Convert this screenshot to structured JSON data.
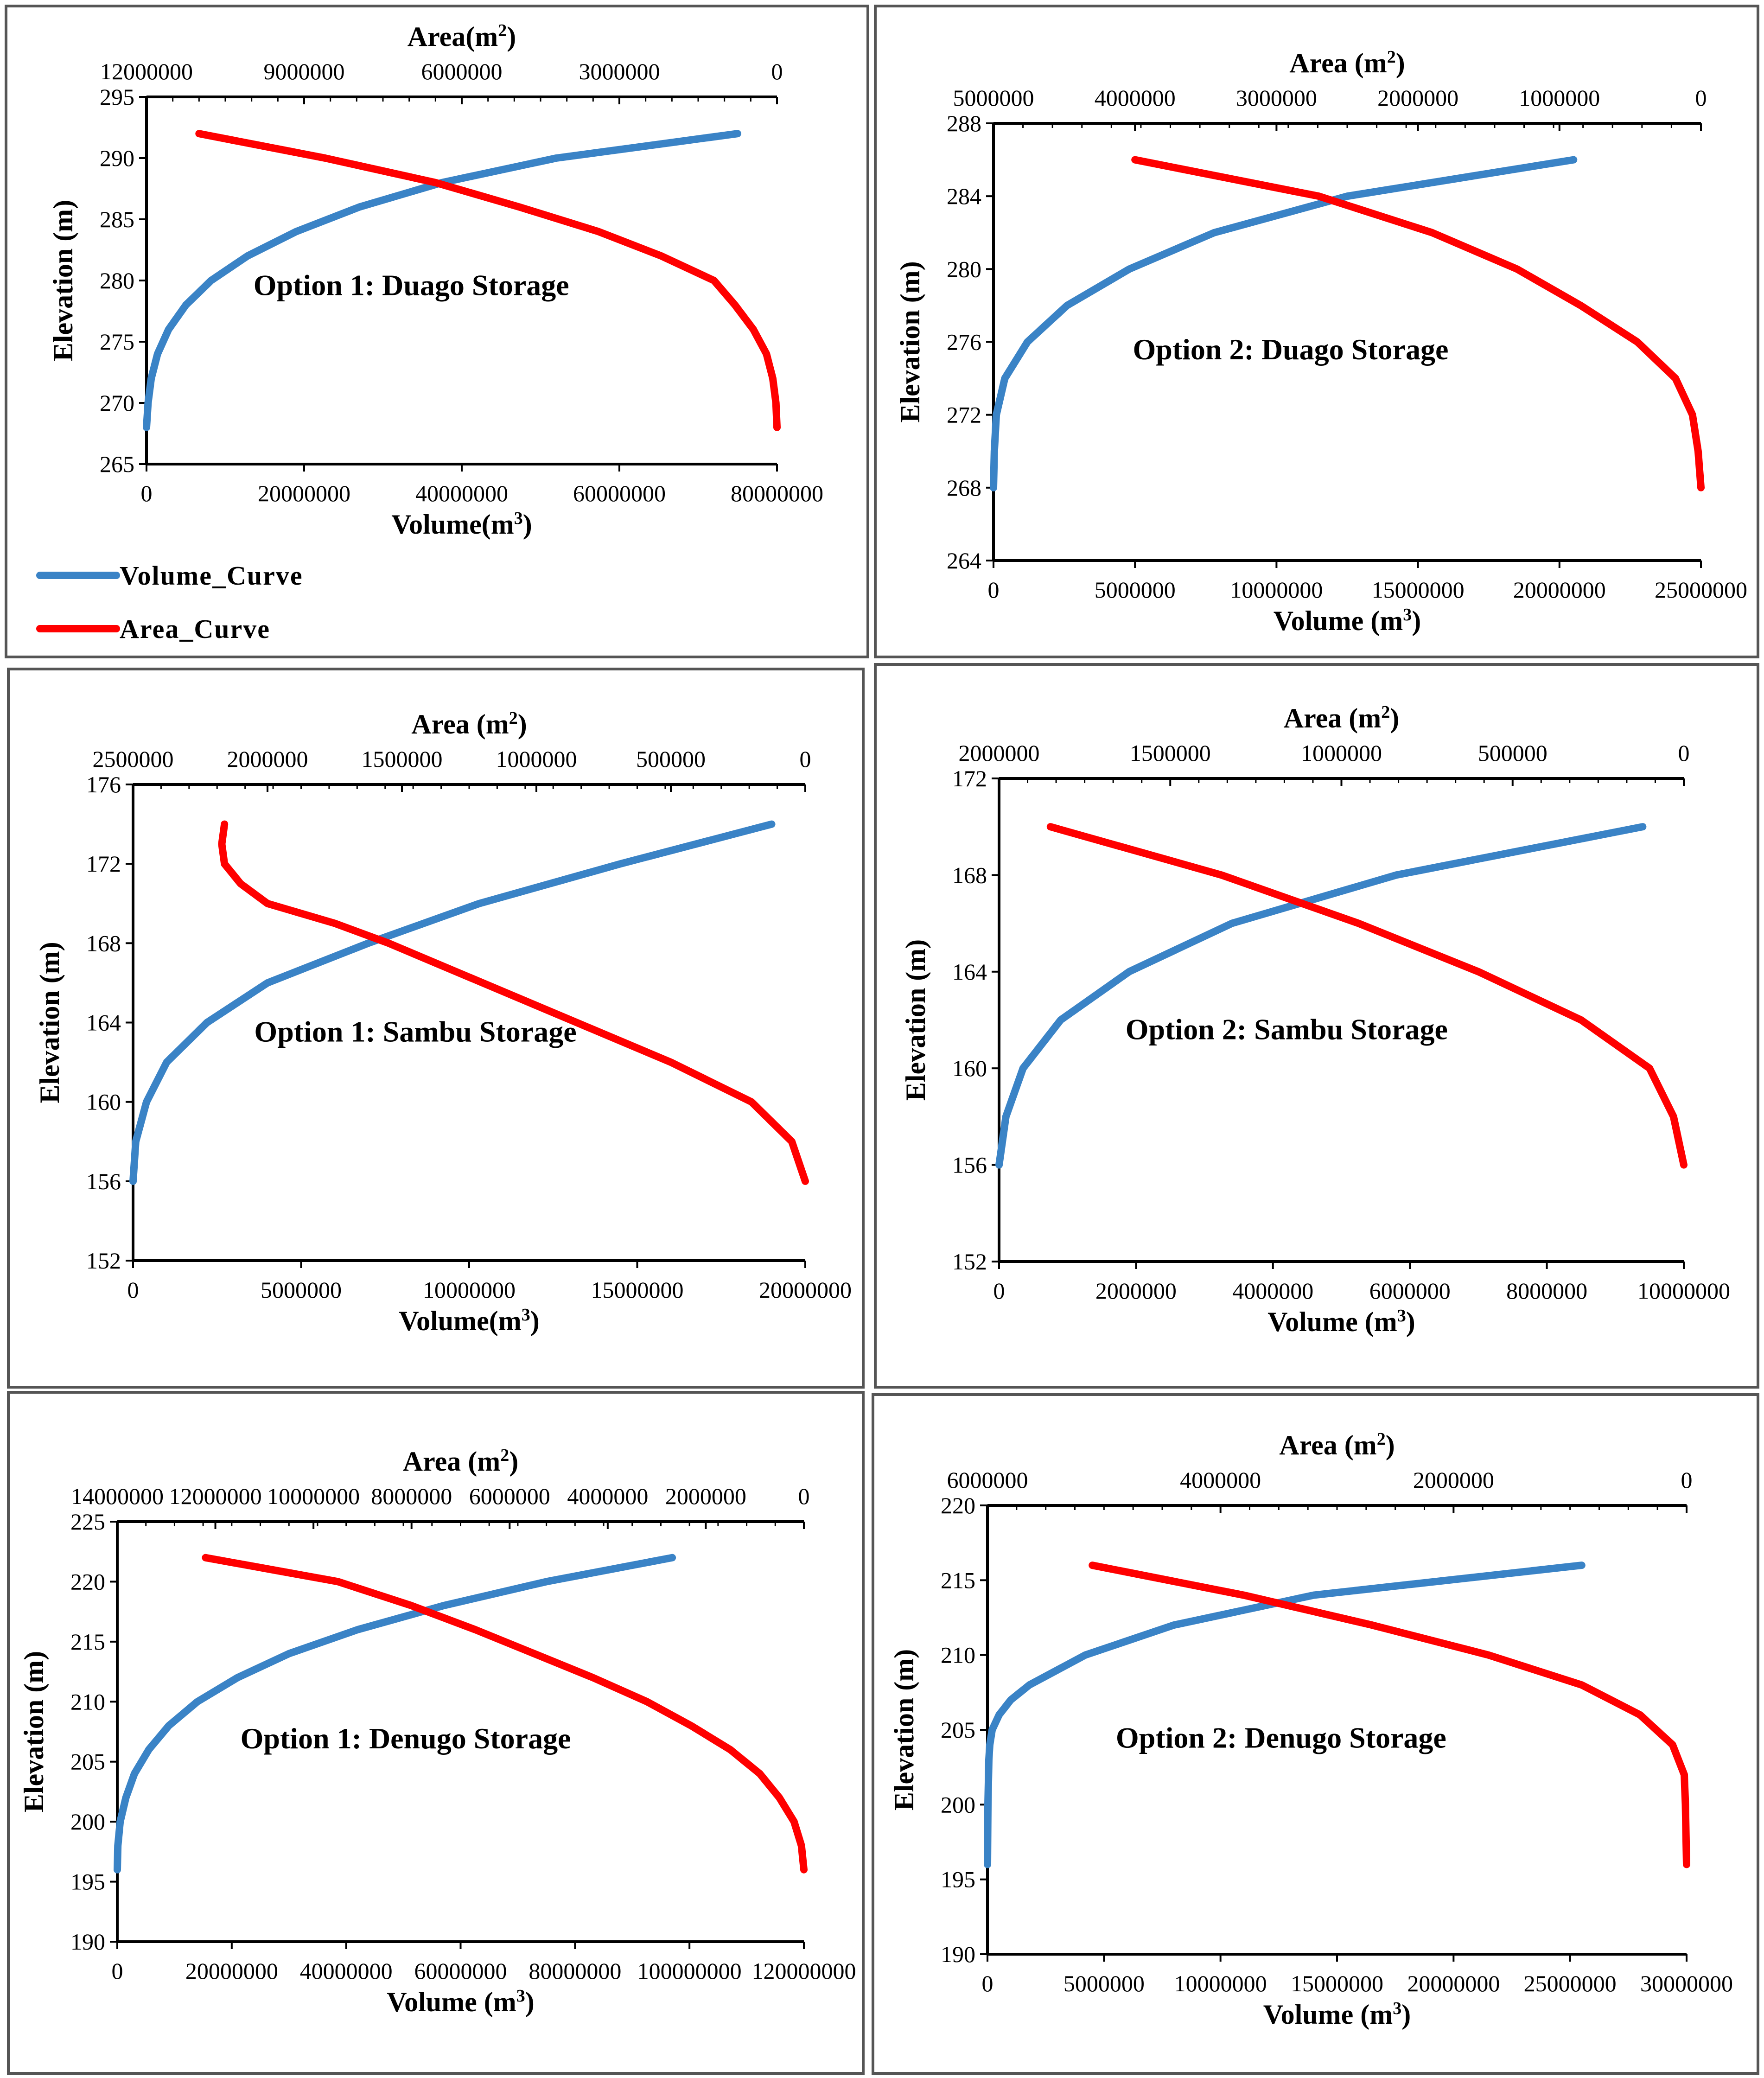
{
  "colors": {
    "volume": "#3a83c6",
    "area": "#ff0000",
    "axis": "#000000",
    "border": "#555555"
  },
  "legend": {
    "volume_label": "Volume_Curve",
    "area_label": "Area_Curve"
  },
  "chart_data": [
    {
      "id": "opt1-duago",
      "type": "line",
      "title": "Option 1: Duago Storage",
      "xlabel": "Volume(m³)",
      "x2label": "Area(m²)",
      "ylabel": "Elevation (m)",
      "ylim": [
        265,
        295
      ],
      "xlim": [
        0,
        80000000
      ],
      "x2lim": [
        12000000,
        0
      ],
      "yticks": [
        "265",
        "270",
        "275",
        "280",
        "285",
        "290",
        "295"
      ],
      "xticks": [
        "0",
        "20000000",
        "40000000",
        "60000000",
        "80000000"
      ],
      "x2ticks": [
        "12000000",
        "9000000",
        "6000000",
        "3000000",
        "0"
      ],
      "volume_series": {
        "name": "Volume_Curve",
        "elevation": [
          268,
          270,
          272,
          274,
          276,
          278,
          280,
          282,
          284,
          286,
          288,
          290,
          292
        ],
        "volume": [
          0,
          200000,
          600000,
          1400000,
          2800000,
          5000000,
          8200000,
          12800000,
          19000000,
          27000000,
          37500000,
          52000000,
          75000000
        ]
      },
      "area_series": {
        "name": "Area_Curve",
        "elevation": [
          268,
          270,
          272,
          274,
          276,
          278,
          280,
          282,
          284,
          286,
          288,
          290,
          292
        ],
        "area": [
          0,
          20000,
          80000,
          200000,
          450000,
          800000,
          1200000,
          2200000,
          3400000,
          4900000,
          6500000,
          8600000,
          11000000
        ]
      }
    },
    {
      "id": "opt2-duago",
      "type": "line",
      "title": "Option 2: Duago Storage",
      "xlabel": "Volume (m³)",
      "x2label": "Area (m²)",
      "ylabel": "Elevation (m)",
      "ylim": [
        264,
        288
      ],
      "xlim": [
        0,
        25000000
      ],
      "x2lim": [
        5000000,
        0
      ],
      "yticks": [
        "264",
        "268",
        "272",
        "276",
        "280",
        "284",
        "288"
      ],
      "xticks": [
        "0",
        "5000000",
        "10000000",
        "15000000",
        "20000000",
        "25000000"
      ],
      "x2ticks": [
        "5000000",
        "4000000",
        "3000000",
        "2000000",
        "1000000",
        "0"
      ],
      "volume_series": {
        "name": "Volume_Curve",
        "elevation": [
          268,
          270,
          272,
          274,
          276,
          278,
          280,
          282,
          284,
          286
        ],
        "volume": [
          0,
          30000,
          100000,
          400000,
          1200000,
          2600000,
          4800000,
          7800000,
          12500000,
          20500000
        ]
      },
      "area_series": {
        "name": "Area_Curve",
        "elevation": [
          268,
          270,
          272,
          274,
          276,
          278,
          280,
          282,
          284,
          286
        ],
        "area": [
          0,
          20000,
          60000,
          180000,
          450000,
          850000,
          1300000,
          1900000,
          2700000,
          4000000
        ]
      }
    },
    {
      "id": "opt1-sambu",
      "type": "line",
      "title": "Option 1: Sambu Storage",
      "xlabel": "Volume(m³)",
      "x2label": "Area (m²)",
      "ylabel": "Elevation (m)",
      "ylim": [
        152,
        176
      ],
      "xlim": [
        0,
        20000000
      ],
      "x2lim": [
        2500000,
        0
      ],
      "yticks": [
        "152",
        "156",
        "160",
        "164",
        "168",
        "172",
        "176"
      ],
      "xticks": [
        "0",
        "5000000",
        "10000000",
        "15000000",
        "20000000"
      ],
      "x2ticks": [
        "2500000",
        "2000000",
        "1500000",
        "1000000",
        "500000",
        "0"
      ],
      "volume_series": {
        "name": "Volume_Curve",
        "elevation": [
          156,
          158,
          160,
          162,
          164,
          166,
          168,
          170,
          172,
          174
        ],
        "volume": [
          0,
          80000,
          400000,
          1000000,
          2200000,
          4000000,
          7000000,
          10300000,
          14500000,
          19000000
        ]
      },
      "area_series": {
        "name": "Area_Curve",
        "elevation": [
          156,
          158,
          160,
          162,
          164,
          166,
          168,
          169,
          170,
          171,
          172,
          173,
          174
        ],
        "area": [
          0,
          50000,
          200000,
          500000,
          850000,
          1200000,
          1550000,
          1750000,
          2000000,
          2100000,
          2160000,
          2170000,
          2160000
        ]
      }
    },
    {
      "id": "opt2-sambu",
      "type": "line",
      "title": "Option 2: Sambu Storage",
      "xlabel": "Volume (m³)",
      "x2label": "Area  (m²)",
      "ylabel": "Elevation (m)",
      "ylim": [
        152,
        172
      ],
      "xlim": [
        0,
        10000000
      ],
      "x2lim": [
        2000000,
        0
      ],
      "yticks": [
        "152",
        "156",
        "160",
        "164",
        "168",
        "172"
      ],
      "xticks": [
        "0",
        "2000000",
        "4000000",
        "6000000",
        "8000000",
        "10000000"
      ],
      "x2ticks": [
        "2000000",
        "1500000",
        "1000000",
        "500000",
        "0"
      ],
      "volume_series": {
        "name": "Volume_Curve",
        "elevation": [
          156,
          158,
          160,
          162,
          164,
          166,
          168,
          170
        ],
        "volume": [
          0,
          100000,
          350000,
          900000,
          1900000,
          3400000,
          5800000,
          9400000
        ]
      },
      "area_series": {
        "name": "Area_Curve",
        "elevation": [
          156,
          158,
          160,
          162,
          164,
          166,
          168,
          170
        ],
        "area": [
          0,
          30000,
          100000,
          300000,
          600000,
          950000,
          1350000,
          1850000
        ]
      }
    },
    {
      "id": "opt1-denugo",
      "type": "line",
      "title": "Option 1: Denugo Storage",
      "xlabel": "Volume (m³)",
      "x2label": "Area (m²)",
      "ylabel": "Elevation (m)",
      "ylim": [
        190,
        225
      ],
      "xlim": [
        0,
        120000000
      ],
      "x2lim": [
        14000000,
        0
      ],
      "yticks": [
        "190",
        "195",
        "200",
        "205",
        "210",
        "215",
        "220",
        "225"
      ],
      "xticks": [
        "0",
        "20000000",
        "40000000",
        "60000000",
        "80000000",
        "100000000",
        "120000000"
      ],
      "x2ticks": [
        "14000000",
        "12000000",
        "10000000",
        "8000000",
        "6000000",
        "4000000",
        "2000000",
        "0"
      ],
      "volume_series": {
        "name": "Volume_Curve",
        "elevation": [
          196,
          198,
          200,
          202,
          204,
          206,
          208,
          210,
          212,
          214,
          216,
          218,
          220,
          222
        ],
        "volume": [
          0,
          100000,
          500000,
          1500000,
          3000000,
          5500000,
          9000000,
          14000000,
          21000000,
          30000000,
          42000000,
          57000000,
          75000000,
          97000000
        ]
      },
      "area_series": {
        "name": "Area_Curve",
        "elevation": [
          196,
          198,
          200,
          202,
          204,
          206,
          208,
          210,
          212,
          214,
          216,
          218,
          220,
          222
        ],
        "area": [
          0,
          50000,
          200000,
          500000,
          900000,
          1500000,
          2300000,
          3200000,
          4300000,
          5500000,
          6700000,
          8000000,
          9500000,
          12200000
        ]
      }
    },
    {
      "id": "opt2-denugo",
      "type": "line",
      "title": "Option 2: Denugo Storage",
      "xlabel": "Volume (m³)",
      "x2label": "Area (m²)",
      "ylabel": "Elevation (m)",
      "ylim": [
        190,
        220
      ],
      "xlim": [
        0,
        30000000
      ],
      "x2lim": [
        6000000,
        0
      ],
      "yticks": [
        "190",
        "195",
        "200",
        "205",
        "210",
        "215",
        "220"
      ],
      "xticks": [
        "0",
        "5000000",
        "10000000",
        "15000000",
        "20000000",
        "25000000",
        "30000000"
      ],
      "x2ticks": [
        "6000000",
        "4000000",
        "2000000",
        "0"
      ],
      "volume_series": {
        "name": "Volume_Curve",
        "elevation": [
          196,
          200,
          203,
          204,
          205,
          206,
          207,
          208,
          210,
          212,
          214,
          216
        ],
        "volume": [
          0,
          20000,
          60000,
          100000,
          200000,
          500000,
          1000000,
          1800000,
          4200000,
          8000000,
          14000000,
          25500000
        ]
      },
      "area_series": {
        "name": "Area_Curve",
        "elevation": [
          196,
          198,
          200,
          202,
          204,
          206,
          208,
          210,
          212,
          214,
          216
        ],
        "area": [
          0,
          5000,
          10000,
          20000,
          120000,
          400000,
          900000,
          1700000,
          2700000,
          3800000,
          5100000
        ]
      }
    }
  ]
}
